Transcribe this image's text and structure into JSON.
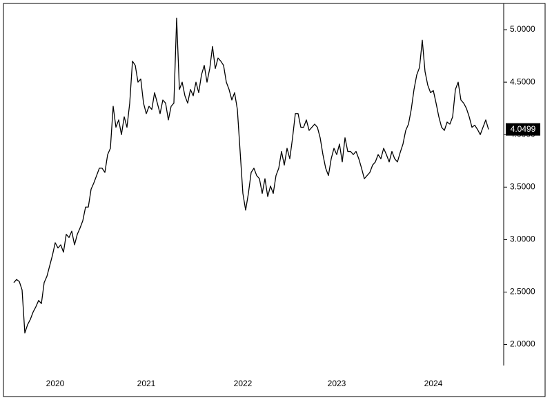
{
  "chart_data": {
    "type": "line",
    "color": "#000000",
    "categories": [
      null,
      null,
      null,
      null,
      null,
      null,
      null,
      null,
      null,
      null,
      null,
      null,
      null,
      null,
      null,
      "2020",
      null,
      null,
      null,
      null,
      null,
      null,
      null,
      null,
      null,
      null,
      null,
      null,
      null,
      null,
      null,
      null,
      null,
      null,
      null,
      null,
      null,
      null,
      null,
      null,
      null,
      null,
      null,
      null,
      null,
      null,
      null,
      null,
      "2021",
      null,
      null,
      null,
      null,
      null,
      null,
      null,
      null,
      null,
      null,
      null,
      null,
      null,
      null,
      null,
      null,
      null,
      null,
      null,
      null,
      null,
      null,
      null,
      null,
      null,
      null,
      null,
      null,
      null,
      null,
      null,
      null,
      null,
      null,
      "2022",
      null,
      null,
      null,
      null,
      null,
      null,
      null,
      null,
      null,
      null,
      null,
      null,
      null,
      null,
      null,
      null,
      null,
      null,
      null,
      null,
      null,
      null,
      null,
      null,
      null,
      null,
      null,
      null,
      null,
      null,
      null,
      null,
      null,
      "2023",
      null,
      null,
      null,
      null,
      null,
      null,
      null,
      null,
      null,
      null,
      null,
      null,
      null,
      null,
      null,
      null,
      null,
      null,
      null,
      null,
      null,
      null,
      null,
      null,
      null,
      null,
      null,
      null,
      null,
      null,
      null,
      null,
      null,
      null,
      "2024",
      null,
      null,
      null,
      null,
      null,
      null,
      null,
      null,
      null,
      null,
      null,
      null,
      null,
      null,
      null,
      null,
      null,
      null,
      null,
      null
    ],
    "values": [
      2.59,
      2.62,
      2.6,
      2.52,
      2.11,
      2.19,
      2.24,
      2.31,
      2.36,
      2.42,
      2.39,
      2.59,
      2.65,
      2.75,
      2.85,
      2.97,
      2.92,
      2.95,
      2.88,
      3.05,
      3.02,
      3.08,
      2.95,
      3.05,
      3.11,
      3.18,
      3.31,
      3.31,
      3.48,
      3.54,
      3.61,
      3.68,
      3.68,
      3.64,
      3.81,
      3.87,
      4.27,
      4.07,
      4.14,
      4.0,
      4.17,
      4.07,
      4.3,
      4.7,
      4.66,
      4.5,
      4.53,
      4.3,
      4.2,
      4.27,
      4.24,
      4.4,
      4.3,
      4.2,
      4.33,
      4.3,
      4.14,
      4.27,
      4.3,
      5.11,
      4.43,
      4.5,
      4.37,
      4.3,
      4.43,
      4.37,
      4.5,
      4.4,
      4.57,
      4.66,
      4.5,
      4.63,
      4.84,
      4.63,
      4.73,
      4.7,
      4.66,
      4.5,
      4.43,
      4.33,
      4.4,
      4.24,
      3.84,
      3.44,
      3.28,
      3.44,
      3.64,
      3.68,
      3.61,
      3.58,
      3.44,
      3.58,
      3.41,
      3.51,
      3.44,
      3.61,
      3.68,
      3.84,
      3.71,
      3.87,
      3.77,
      3.97,
      4.2,
      4.2,
      4.07,
      4.07,
      4.14,
      4.04,
      4.07,
      4.1,
      4.07,
      3.97,
      3.81,
      3.68,
      3.61,
      3.77,
      3.87,
      3.81,
      3.91,
      3.74,
      3.97,
      3.84,
      3.84,
      3.81,
      3.84,
      3.77,
      3.68,
      3.58,
      3.61,
      3.64,
      3.71,
      3.74,
      3.81,
      3.77,
      3.87,
      3.81,
      3.74,
      3.84,
      3.77,
      3.74,
      3.83,
      3.91,
      4.04,
      4.1,
      4.24,
      4.43,
      4.57,
      4.64,
      4.9,
      4.6,
      4.47,
      4.4,
      4.42,
      4.3,
      4.17,
      4.07,
      4.04,
      4.12,
      4.1,
      4.17,
      4.43,
      4.5,
      4.33,
      4.3,
      4.25,
      4.17,
      4.07,
      4.09,
      4.05,
      4.0,
      4.07,
      4.14,
      4.0499
    ],
    "ylim": [
      1.8,
      5.25
    ],
    "yticks": [
      {
        "value": 2,
        "label": "2.0000"
      },
      {
        "value": 2.5,
        "label": "2.5000"
      },
      {
        "value": 3,
        "label": "3.0000"
      },
      {
        "value": 3.5,
        "label": "3.5000"
      },
      {
        "value": 4,
        "label": "4.0000"
      },
      {
        "value": 4.5,
        "label": "4.5000"
      },
      {
        "value": 5,
        "label": "5.0000"
      }
    ],
    "grid": false,
    "y_axis_side": "right"
  }
}
